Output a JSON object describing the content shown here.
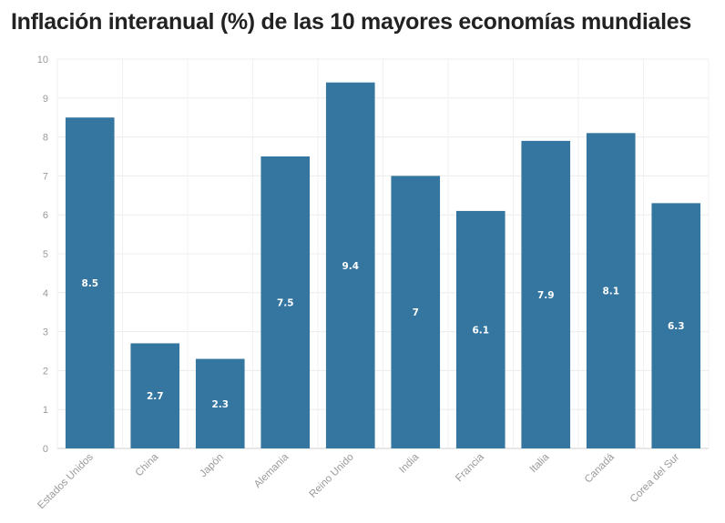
{
  "chart_data": {
    "type": "bar",
    "title": "Inflación interanual (%) de las 10 mayores economías mundiales",
    "xlabel": "",
    "ylabel": "",
    "categories": [
      "Estados Unidos",
      "China",
      "Japón",
      "Alemania",
      "Reino Unido",
      "India",
      "Francia",
      "Italia",
      "Canadá",
      "Corea del Sur"
    ],
    "values": [
      8.5,
      2.7,
      2.3,
      7.5,
      9.4,
      7,
      6.1,
      7.9,
      8.1,
      6.3
    ],
    "ylim": [
      0,
      10
    ],
    "yticks": [
      0,
      1,
      2,
      3,
      4,
      5,
      6,
      7,
      8,
      9,
      10
    ],
    "grid": true,
    "bar_color": "#3476a0",
    "legend": "none"
  }
}
